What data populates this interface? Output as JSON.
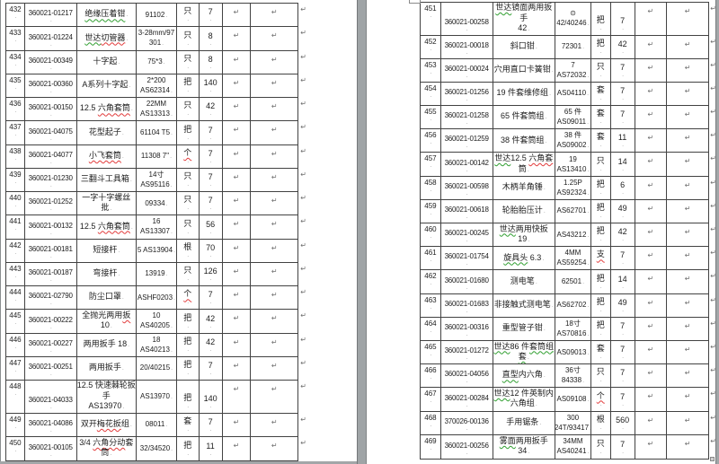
{
  "view": {
    "name": "word-two-page-print-layout"
  },
  "marks": {
    "cell_end": "↵",
    "dot": "."
  },
  "colors": {
    "workspace": "#a2a6a8",
    "page": "#ffffff",
    "grid": "#424242",
    "text": "#1c1c1c",
    "squiggle_green": "#2f9e2f",
    "squiggle_red": "#e23a3a"
  },
  "left_table": {
    "rows": [
      {
        "no": "432",
        "code": "360021-01217",
        "desc": [
          [
            [
              "绝缘压着钳",
              "g"
            ]
          ]
        ],
        "spec": [
          "91102"
        ],
        "unit": "只",
        "unit_flag": "",
        "qty": "7"
      },
      {
        "no": "433",
        "code": "360021-01224",
        "desc": [
          [
            [
              "世达",
              "g"
            ],
            [
              "切管器",
              "r"
            ]
          ]
        ],
        "spec": [
          "3-28mm/97",
          "301"
        ],
        "unit": "只",
        "unit_flag": "",
        "qty": "8"
      },
      {
        "no": "434",
        "code": "360021-00349",
        "desc": [
          [
            [
              "十字起",
              ""
            ]
          ]
        ],
        "spec": [
          "75*3"
        ],
        "unit": "只",
        "unit_flag": "",
        "qty": "8"
      },
      {
        "no": "435",
        "code": "360021-00360",
        "desc": [
          [
            [
              "A系列十字起",
              ""
            ]
          ]
        ],
        "spec": [
          "2*200",
          "AS62314"
        ],
        "unit": "把",
        "unit_flag": "",
        "qty": "140"
      },
      {
        "no": "436",
        "code": "360021-00150",
        "desc": [
          [
            [
              "12.5 ",
              ""
            ],
            [
              "六角套筒",
              "r"
            ]
          ]
        ],
        "spec": [
          "22MM",
          "AS13313"
        ],
        "unit": "只",
        "unit_flag": "",
        "qty": "42"
      },
      {
        "no": "437",
        "code": "360021-04075",
        "desc": [
          [
            [
              "花型起子",
              ""
            ]
          ]
        ],
        "spec": [
          "61104 T5"
        ],
        "unit": "把",
        "unit_flag": "",
        "qty": "7"
      },
      {
        "no": "438",
        "code": "360021-04077",
        "desc": [
          [
            [
              "小飞套筒",
              "r"
            ]
          ]
        ],
        "spec": [
          "11308 7\""
        ],
        "unit": "个",
        "unit_flag": "r",
        "qty": "7"
      },
      {
        "no": "439",
        "code": "360021-01230",
        "desc": [
          [
            [
              "三翻斗工具箱",
              ""
            ]
          ]
        ],
        "spec": [
          "14寸",
          "AS95116"
        ],
        "unit": "只",
        "unit_flag": "",
        "qty": "7"
      },
      {
        "no": "440",
        "code": "360021-01252",
        "desc": [
          [
            [
              "一字十字螺丝批",
              ""
            ]
          ]
        ],
        "spec": [
          "09334"
        ],
        "unit": "只",
        "unit_flag": "",
        "qty": "7"
      },
      {
        "no": "441",
        "code": "360021-00132",
        "desc": [
          [
            [
              "12.5 ",
              ""
            ],
            [
              "六角套筒",
              "r"
            ]
          ]
        ],
        "spec": [
          "16",
          "AS13307"
        ],
        "unit": "只",
        "unit_flag": "",
        "qty": "56"
      },
      {
        "no": "442",
        "code": "360021-00181",
        "desc": [
          [
            [
              "短接杆",
              ""
            ]
          ]
        ],
        "spec": [
          "5 AS13904"
        ],
        "unit": "根",
        "unit_flag": "",
        "qty": "70"
      },
      {
        "no": "443",
        "code": "360021-00187",
        "desc": [
          [
            [
              "弯接杆",
              ""
            ]
          ]
        ],
        "spec": [
          "13919"
        ],
        "unit": "只",
        "unit_flag": "",
        "qty": "126"
      },
      {
        "no": "444",
        "code": "360021-02790",
        "desc": [
          [
            [
              "防尘口罩",
              ""
            ]
          ]
        ],
        "spec": [
          "ASHF0203"
        ],
        "unit": "个",
        "unit_flag": "r",
        "qty": "7"
      },
      {
        "no": "445",
        "code": "360021-00222",
        "desc": [
          [
            [
              "全抛光两用",
              ""
            ],
            [
              "扳",
              "r"
            ],
            [
              " 10",
              ""
            ]
          ]
        ],
        "spec": [
          "10",
          "AS40205"
        ],
        "unit": "把",
        "unit_flag": "",
        "qty": "42"
      },
      {
        "no": "446",
        "code": "360021-00227",
        "desc": [
          [
            [
              "两用扳手 18",
              ""
            ]
          ]
        ],
        "spec": [
          "18",
          "AS40213"
        ],
        "unit": "把",
        "unit_flag": "",
        "qty": "42"
      },
      {
        "no": "447",
        "code": "360021-00251",
        "desc": [
          [
            [
              "两用扳手",
              ""
            ]
          ]
        ],
        "spec": [
          "20/40215"
        ],
        "unit": "把",
        "unit_flag": "",
        "qty": "7"
      },
      {
        "no": "448",
        "code": "360021-04033",
        "desc": [
          [
            [
              "12.5 快速棘轮扳手",
              ""
            ]
          ],
          [
            [
              "AS13970",
              ""
            ]
          ]
        ],
        "spec": [
          "AS13970"
        ],
        "unit": "把",
        "unit_flag": "",
        "qty": "140"
      },
      {
        "no": "449",
        "code": "360021-04086",
        "desc": [
          [
            [
              "双开",
              ""
            ],
            [
              "梅花扳",
              "r"
            ],
            [
              "组",
              ""
            ]
          ]
        ],
        "spec": [
          "08011"
        ],
        "unit": "套",
        "unit_flag": "",
        "qty": "7"
      },
      {
        "no": "450",
        "code": "360021-00105",
        "desc": [
          [
            [
              "3/4 ",
              ""
            ],
            [
              "六角分动",
              "r"
            ],
            [
              "套筒",
              ""
            ]
          ]
        ],
        "spec": [
          "32/34520"
        ],
        "unit": "把",
        "unit_flag": "",
        "qty": "11"
      }
    ]
  },
  "right_table": {
    "rows": [
      {
        "no": "451",
        "code": "360021-00258",
        "desc": [
          [
            [
              "世达",
              "g"
            ],
            [
              "镜面两用扳手",
              ""
            ]
          ],
          [
            [
              "42",
              ""
            ]
          ]
        ],
        "spec": [
          "⊙",
          "42/40246"
        ],
        "unit": "把",
        "unit_flag": "",
        "qty": "7"
      },
      {
        "no": "452",
        "code": "360021-00018",
        "desc": [
          [
            [
              "斜口钳",
              ""
            ]
          ]
        ],
        "spec": [
          "72301"
        ],
        "unit": "把",
        "unit_flag": "",
        "qty": "42"
      },
      {
        "no": "453",
        "code": "360021-00024",
        "desc": [
          [
            [
              "穴用直口卡簧钳",
              ""
            ]
          ]
        ],
        "spec": [
          "7 AS72032"
        ],
        "unit": "只",
        "unit_flag": "",
        "qty": "7"
      },
      {
        "no": "454",
        "code": "360021-01256",
        "desc": [
          [
            [
              "19 件套维修组",
              ""
            ]
          ]
        ],
        "spec": [
          "AS04110"
        ],
        "unit": "套",
        "unit_flag": "",
        "qty": "7"
      },
      {
        "no": "455",
        "code": "360021-01258",
        "desc": [
          [
            [
              "65 件套筒组",
              ""
            ]
          ]
        ],
        "spec": [
          "65 件",
          "AS09011"
        ],
        "unit": "套",
        "unit_flag": "",
        "qty": "7"
      },
      {
        "no": "456",
        "code": "360021-01259",
        "desc": [
          [
            [
              "38 件套筒组",
              ""
            ]
          ]
        ],
        "spec": [
          "38 件",
          "AS09002"
        ],
        "unit": "套",
        "unit_flag": "",
        "qty": "11"
      },
      {
        "no": "457",
        "code": "360021-00142",
        "desc": [
          [
            [
              "世达",
              "g"
            ],
            [
              "12.5 ",
              ""
            ],
            [
              "六角套",
              "r"
            ]
          ],
          [
            [
              "筒",
              ""
            ]
          ]
        ],
        "spec": [
          "19",
          "AS13410"
        ],
        "unit": "只",
        "unit_flag": "",
        "qty": "14"
      },
      {
        "no": "458",
        "code": "360021-00598",
        "desc": [
          [
            [
              "木柄羊角锤",
              ""
            ]
          ]
        ],
        "spec": [
          "1.25P",
          "AS92324"
        ],
        "unit": "把",
        "unit_flag": "",
        "qty": "6"
      },
      {
        "no": "459",
        "code": "360021-00618",
        "desc": [
          [
            [
              "轮胎胎压计",
              ""
            ]
          ]
        ],
        "spec": [
          "AS62701"
        ],
        "unit": "把",
        "unit_flag": "",
        "qty": "49"
      },
      {
        "no": "460",
        "code": "360021-00245",
        "desc": [
          [
            [
              "世达",
              "g"
            ],
            [
              "两用快扳 19",
              ""
            ]
          ]
        ],
        "spec": [
          "AS43212"
        ],
        "unit": "把",
        "unit_flag": "",
        "qty": "42"
      },
      {
        "no": "461",
        "code": "360021-01754",
        "desc": [
          [
            [
              "旋具头",
              "g"
            ],
            [
              " 6.3",
              ""
            ]
          ]
        ],
        "spec": [
          "4MM",
          "AS59254"
        ],
        "unit": "支",
        "unit_flag": "r",
        "qty": "7"
      },
      {
        "no": "462",
        "code": "360021-01680",
        "desc": [
          [
            [
              "测电笔",
              ""
            ]
          ]
        ],
        "spec": [
          "62501"
        ],
        "unit": "把",
        "unit_flag": "",
        "qty": "14"
      },
      {
        "no": "463",
        "code": "360021-01683",
        "desc": [
          [
            [
              "非接触式测电笔",
              ""
            ]
          ]
        ],
        "spec": [
          "AS62702"
        ],
        "unit": "把",
        "unit_flag": "",
        "qty": "49"
      },
      {
        "no": "464",
        "code": "360021-00316",
        "desc": [
          [
            [
              "重型管子钳",
              ""
            ]
          ]
        ],
        "spec": [
          "18寸",
          "AS70816"
        ],
        "unit": "把",
        "unit_flag": "",
        "qty": "7"
      },
      {
        "no": "465",
        "code": "360021-01272",
        "desc": [
          [
            [
              "世达",
              "g"
            ],
            [
              "86 件",
              ""
            ],
            [
              "套筒组",
              "g"
            ]
          ],
          [
            [
              "套",
              "g"
            ]
          ]
        ],
        "spec": [
          "AS09013"
        ],
        "unit": "套",
        "unit_flag": "",
        "qty": "7"
      },
      {
        "no": "466",
        "code": "360021-04056",
        "desc": [
          [
            [
              "直型",
              "g"
            ],
            [
              "内六角",
              ""
            ]
          ]
        ],
        "spec": [
          "36寸",
          "84338"
        ],
        "unit": "只",
        "unit_flag": "",
        "qty": "7"
      },
      {
        "no": "467",
        "code": "360021-00284",
        "desc": [
          [
            [
              "世达",
              "g"
            ],
            [
              "12 件英制内",
              ""
            ]
          ],
          [
            [
              "六角组",
              ""
            ]
          ]
        ],
        "spec": [
          "AS09108"
        ],
        "unit": "个",
        "unit_flag": "r",
        "qty": "7"
      },
      {
        "no": "468",
        "code": "370026-00136",
        "desc": [
          [
            [
              "手用锯条",
              ""
            ]
          ]
        ],
        "spec": [
          "300",
          "24T/93417"
        ],
        "unit": "根",
        "unit_flag": "",
        "qty": "560"
      },
      {
        "no": "469",
        "code": "360021-00256",
        "desc": [
          [
            [
              "雾面",
              "g"
            ],
            [
              "两用扳手 34",
              ""
            ]
          ]
        ],
        "spec": [
          "34MM",
          "AS40241"
        ],
        "unit": "只",
        "unit_flag": "",
        "qty": "7"
      }
    ]
  }
}
